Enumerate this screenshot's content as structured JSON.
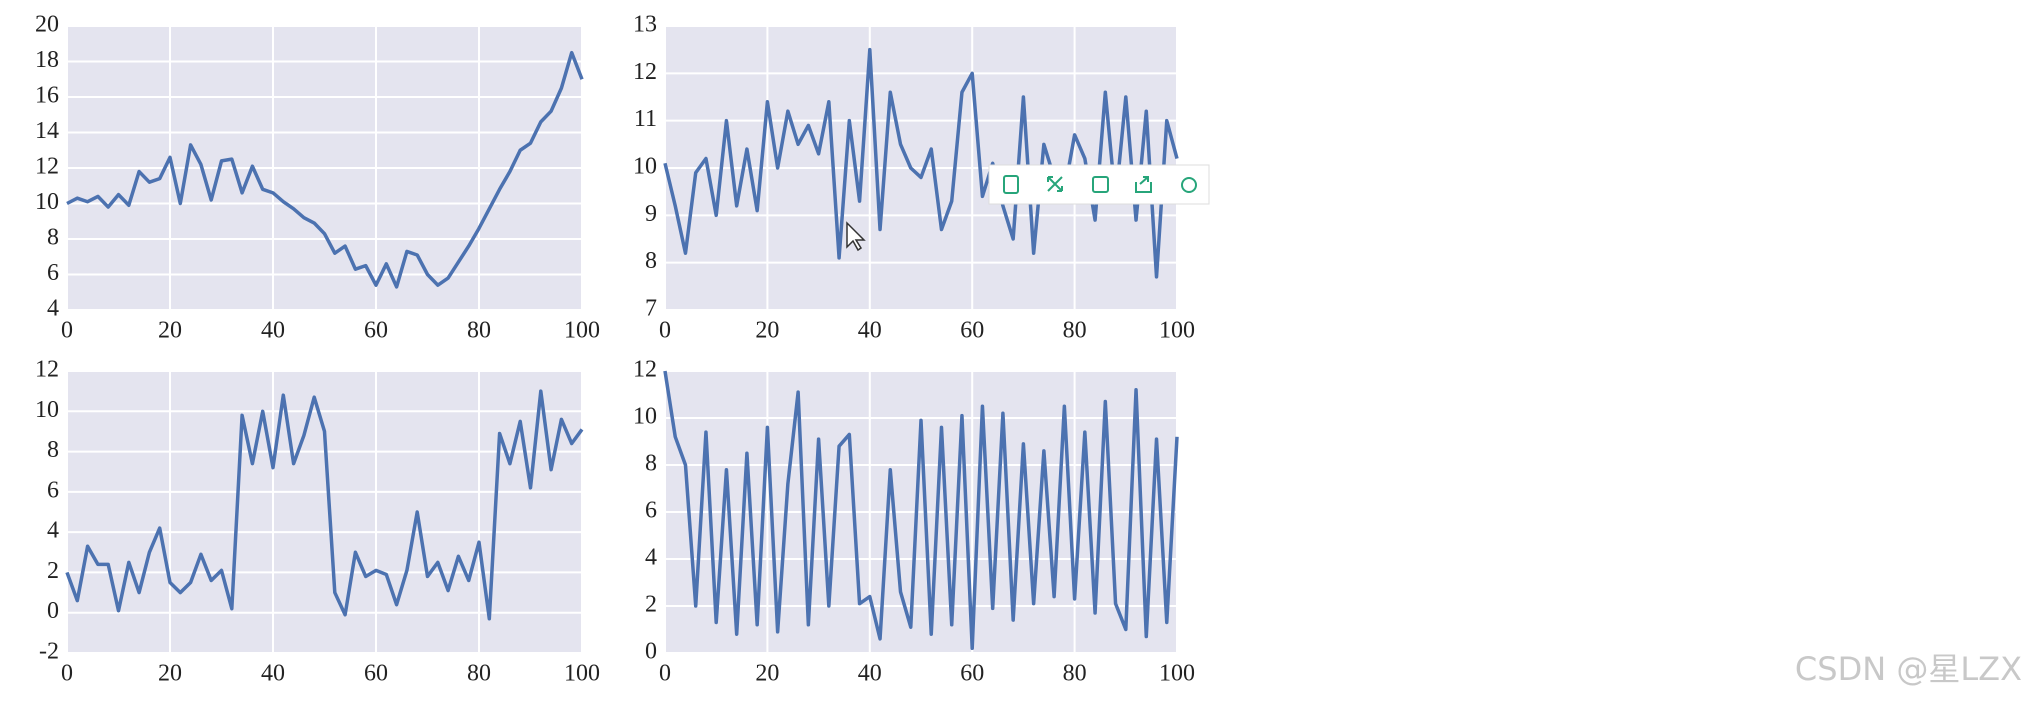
{
  "chart_data": [
    {
      "type": "line",
      "grid": true,
      "color": "#4c72b0",
      "x": [
        0,
        2,
        4,
        6,
        8,
        10,
        12,
        14,
        16,
        18,
        20,
        22,
        24,
        26,
        28,
        30,
        32,
        34,
        36,
        38,
        40,
        42,
        44,
        46,
        48,
        50,
        52,
        54,
        56,
        58,
        60,
        62,
        64,
        66,
        68,
        70,
        72,
        74,
        76,
        78,
        80,
        82,
        84,
        86,
        88,
        90,
        92,
        94,
        96,
        98,
        100
      ],
      "values": [
        10,
        10.3,
        10.1,
        10.4,
        9.8,
        10.5,
        9.9,
        11.8,
        11.2,
        11.4,
        12.6,
        10,
        13.3,
        12.2,
        10.2,
        12.4,
        12.5,
        10.6,
        12.1,
        10.8,
        10.6,
        10.1,
        9.7,
        9.2,
        8.9,
        8.3,
        7.2,
        7.6,
        6.3,
        6.5,
        5.4,
        6.6,
        5.3,
        7.3,
        7.1,
        6,
        5.4,
        5.8,
        6.7,
        7.6,
        8.6,
        9.7,
        10.8,
        11.8,
        13,
        13.4,
        14.6,
        15.2,
        16.5,
        18.5,
        17
      ],
      "xlim": [
        0,
        100
      ],
      "xticks": [
        0,
        20,
        40,
        60,
        80,
        100
      ],
      "ylim": [
        4,
        20
      ],
      "yticks": [
        4,
        6,
        8,
        10,
        12,
        14,
        16,
        18,
        20
      ]
    },
    {
      "type": "line",
      "grid": true,
      "color": "#4c72b0",
      "x": [
        0,
        2,
        4,
        6,
        8,
        10,
        12,
        14,
        16,
        18,
        20,
        22,
        24,
        26,
        28,
        30,
        32,
        34,
        36,
        38,
        40,
        42,
        44,
        46,
        48,
        50,
        52,
        54,
        56,
        58,
        60,
        62,
        64,
        66,
        68,
        70,
        72,
        74,
        76,
        78,
        80,
        82,
        84,
        86,
        88,
        90,
        92,
        94,
        96,
        98,
        100
      ],
      "values": [
        10.1,
        9.2,
        8.2,
        9.9,
        10.2,
        9,
        11,
        9.2,
        10.4,
        9.1,
        11.4,
        10,
        11.2,
        10.5,
        10.9,
        10.3,
        11.4,
        8.1,
        11,
        9.3,
        12.5,
        8.7,
        11.6,
        10.5,
        10,
        9.8,
        10.4,
        8.7,
        9.3,
        11.6,
        12,
        9.4,
        10.1,
        9.2,
        8.5,
        11.5,
        8.2,
        10.5,
        9.8,
        9.5,
        10.7,
        10.2,
        8.9,
        11.6,
        9.3,
        11.5,
        8.9,
        11.2,
        7.7,
        11,
        10.2
      ],
      "xlim": [
        0,
        100
      ],
      "xticks": [
        0,
        20,
        40,
        60,
        80,
        100
      ],
      "ylim": [
        7,
        13
      ],
      "yticks": [
        7,
        8,
        9,
        10,
        11,
        12,
        13
      ]
    },
    {
      "type": "line",
      "grid": true,
      "color": "#4c72b0",
      "x": [
        0,
        2,
        4,
        6,
        8,
        10,
        12,
        14,
        16,
        18,
        20,
        22,
        24,
        26,
        28,
        30,
        32,
        34,
        36,
        38,
        40,
        42,
        44,
        46,
        48,
        50,
        52,
        54,
        56,
        58,
        60,
        62,
        64,
        66,
        68,
        70,
        72,
        74,
        76,
        78,
        80,
        82,
        84,
        86,
        88,
        90,
        92,
        94,
        96,
        98,
        100
      ],
      "values": [
        2,
        0.6,
        3.3,
        2.4,
        2.4,
        0.1,
        2.5,
        1,
        3,
        4.2,
        1.5,
        1,
        1.5,
        2.9,
        1.6,
        2.1,
        0.2,
        9.8,
        7.4,
        10,
        7.2,
        10.8,
        7.4,
        8.8,
        10.7,
        9,
        1,
        -0.1,
        3,
        1.8,
        2.1,
        1.9,
        0.4,
        2.1,
        5,
        1.8,
        2.5,
        1.1,
        2.8,
        1.6,
        3.5,
        -0.3,
        8.9,
        7.4,
        9.5,
        6.2,
        11,
        7.1,
        9.6,
        8.4,
        9.1
      ],
      "xlim": [
        0,
        100
      ],
      "xticks": [
        0,
        20,
        40,
        60,
        80,
        100
      ],
      "ylim": [
        -2,
        12
      ],
      "yticks": [
        -2,
        0,
        2,
        4,
        6,
        8,
        10,
        12
      ]
    },
    {
      "type": "line",
      "grid": true,
      "color": "#4c72b0",
      "x": [
        0,
        2,
        4,
        6,
        8,
        10,
        12,
        14,
        16,
        18,
        20,
        22,
        24,
        26,
        28,
        30,
        32,
        34,
        36,
        38,
        40,
        42,
        44,
        46,
        48,
        50,
        52,
        54,
        56,
        58,
        60,
        62,
        64,
        66,
        68,
        70,
        72,
        74,
        76,
        78,
        80,
        82,
        84,
        86,
        88,
        90,
        92,
        94,
        96,
        98,
        100
      ],
      "values": [
        12,
        9.2,
        8,
        2,
        9.4,
        1.3,
        7.8,
        0.8,
        8.5,
        1.2,
        9.6,
        0.9,
        7.2,
        11.1,
        1.2,
        9.1,
        2,
        8.8,
        9.3,
        2.1,
        2.4,
        0.6,
        7.8,
        2.6,
        1.1,
        9.9,
        0.8,
        9.6,
        1.2,
        10.1,
        0.2,
        10.5,
        1.9,
        10.2,
        1.4,
        8.9,
        2.1,
        8.6,
        2.4,
        10.5,
        2.3,
        9.4,
        1.7,
        10.7,
        2.1,
        1,
        11.2,
        0.7,
        9.1,
        1.3,
        9.2
      ],
      "xlim": [
        0,
        100
      ],
      "xticks": [
        0,
        20,
        40,
        60,
        80,
        100
      ],
      "ylim": [
        0,
        12
      ],
      "yticks": [
        0,
        2,
        4,
        6,
        8,
        10,
        12
      ]
    }
  ],
  "watermark": "CSDN @星LZX"
}
